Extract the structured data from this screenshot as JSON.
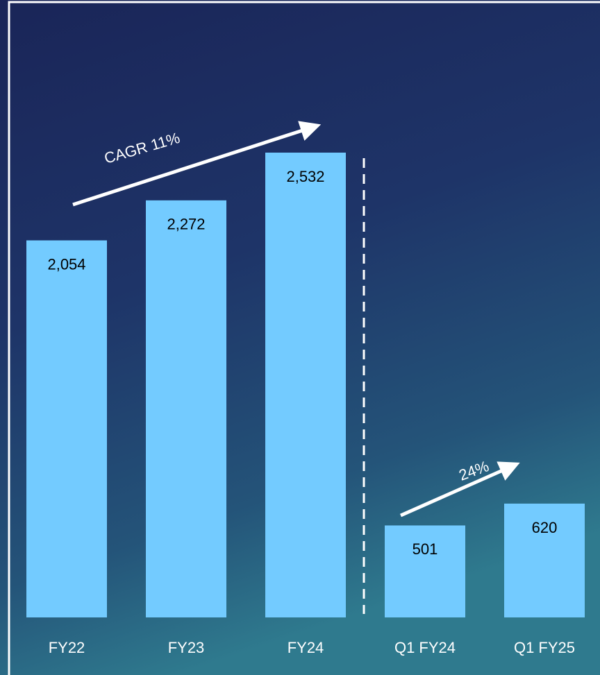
{
  "chart_data": {
    "type": "bar",
    "categories": [
      "FY22",
      "FY23",
      "FY24",
      "Q1 FY24",
      "Q1 FY25"
    ],
    "values": [
      2054,
      2272,
      2532,
      501,
      620
    ],
    "value_labels": [
      "2,054",
      "2,272",
      "2,532",
      "501",
      "620"
    ],
    "color": "#73cbff",
    "annotations": [
      "CAGR  11%",
      "24%"
    ]
  }
}
